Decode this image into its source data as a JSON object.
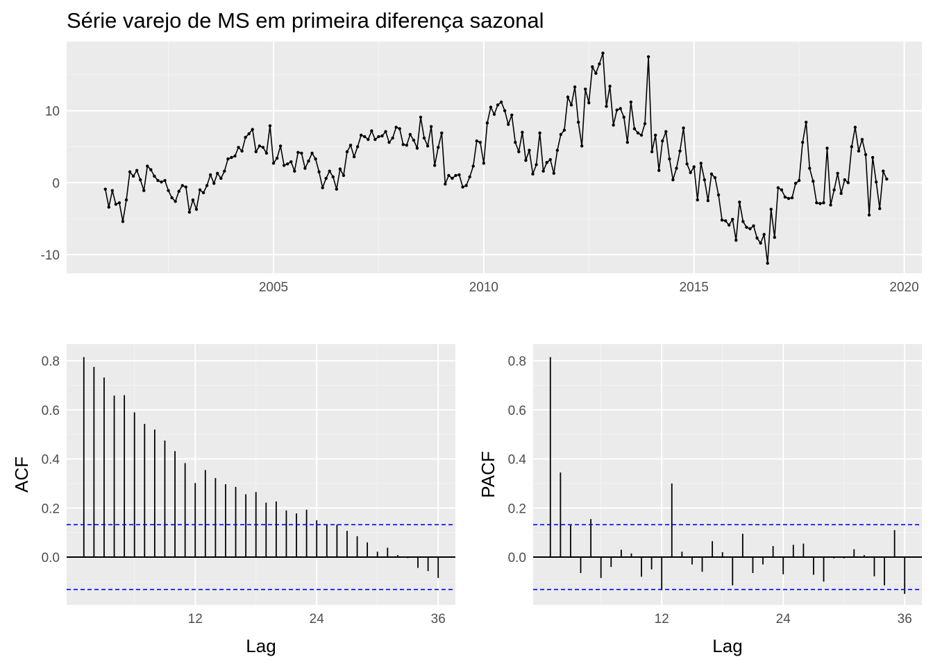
{
  "chart_data": [
    {
      "type": "line",
      "title": "Série varejo de MS em primeira diferença sazonal",
      "xlabel": "",
      "ylabel": "",
      "x_start": 2001.0,
      "x_step": 0.08333333,
      "xlim": [
        2000.08,
        2020.42
      ],
      "ylim": [
        -12.6,
        19.6
      ],
      "x_ticks": [
        2005,
        2010,
        2015,
        2020
      ],
      "y_ticks": [
        -10,
        0,
        10
      ],
      "grid": true,
      "markers": true,
      "series": [
        {
          "values": [
            -0.9,
            -3.4,
            -1.1,
            -3.0,
            -2.8,
            -5.4,
            -2.4,
            1.5,
            0.9,
            1.7,
            0.4,
            -1.1,
            2.3,
            1.8,
            0.9,
            0.3,
            0.1,
            0.3,
            -1.1,
            -2.1,
            -2.6,
            -1.2,
            -0.4,
            -0.6,
            -4.1,
            -2.4,
            -3.7,
            -1.0,
            -1.4,
            -0.4,
            1.1,
            -0.1,
            1.3,
            0.6,
            1.6,
            3.3,
            3.5,
            3.7,
            4.9,
            4.4,
            6.3,
            6.8,
            7.4,
            4.3,
            5.1,
            4.9,
            4.1,
            7.9,
            2.7,
            3.4,
            5.1,
            2.4,
            2.6,
            2.9,
            1.6,
            4.2,
            4.1,
            2.0,
            3.0,
            4.1,
            3.3,
            1.5,
            -0.7,
            0.6,
            1.6,
            0.8,
            -0.9,
            1.9,
            1.0,
            4.3,
            5.2,
            3.6,
            5.0,
            6.6,
            6.4,
            6.0,
            7.2,
            6.0,
            6.4,
            6.5,
            7.1,
            5.6,
            6.2,
            7.7,
            7.5,
            5.3,
            5.2,
            6.7,
            5.9,
            4.8,
            9.1,
            6.2,
            5.1,
            7.8,
            2.4,
            4.9,
            6.9,
            -0.2,
            1.0,
            0.6,
            1.0,
            1.1,
            -0.6,
            -0.4,
            0.8,
            2.3,
            5.8,
            5.6,
            2.7,
            8.3,
            10.5,
            9.5,
            10.8,
            11.2,
            10.0,
            8.1,
            9.4,
            5.6,
            4.3,
            7.0,
            3.1,
            4.5,
            1.2,
            2.5,
            6.9,
            1.6,
            2.8,
            3.2,
            1.3,
            4.5,
            6.7,
            7.3,
            11.9,
            10.8,
            13.3,
            8.4,
            5.1,
            13.0,
            11.1,
            16.1,
            15.2,
            16.5,
            18.0,
            10.6,
            13.4,
            8.0,
            10.1,
            10.3,
            9.1,
            5.6,
            11.2,
            7.5,
            6.9,
            6.6,
            8.2,
            17.5,
            4.3,
            6.6,
            1.7,
            5.8,
            7.1,
            3.3,
            0.4,
            2.0,
            4.4,
            7.6,
            2.6,
            1.4,
            2.2,
            -2.4,
            2.7,
            0.4,
            -2.5,
            1.2,
            0.7,
            -1.7,
            -5.2,
            -5.3,
            -5.9,
            -5.1,
            -8.0,
            -2.7,
            -5.4,
            -6.2,
            -6.4,
            -6.0,
            -7.7,
            -8.4,
            -7.2,
            -11.2,
            -3.7,
            -7.6,
            -0.7,
            -1.0,
            -2.0,
            -2.2,
            -2.1,
            -0.1,
            0.3,
            5.6,
            8.4,
            2.0,
            0.2,
            -2.8,
            -2.9,
            -2.8,
            4.8,
            -3.1,
            -1.0,
            1.3,
            -1.5,
            0.4,
            0.0,
            5.0,
            7.7,
            4.4,
            6.0,
            3.9,
            -4.5,
            3.5,
            0.1,
            -3.6,
            1.6,
            0.5
          ]
        }
      ]
    },
    {
      "type": "bar",
      "title": "",
      "xlabel": "Lag",
      "ylabel": "ACF",
      "xlim": [
        -0.7,
        37.7
      ],
      "ylim": [
        -0.195,
        0.868
      ],
      "x_ticks": [
        12,
        24,
        36
      ],
      "y_ticks": [
        0.0,
        0.2,
        0.4,
        0.6,
        0.8
      ],
      "conf_bound": 0.132,
      "lags": [
        1,
        2,
        3,
        4,
        5,
        6,
        7,
        8,
        9,
        10,
        11,
        12,
        13,
        14,
        15,
        16,
        17,
        18,
        19,
        20,
        21,
        22,
        23,
        24,
        25,
        26,
        27,
        28,
        29,
        30,
        31,
        32,
        33,
        34,
        35,
        36
      ],
      "values": [
        0.815,
        0.775,
        0.732,
        0.658,
        0.66,
        0.59,
        0.543,
        0.52,
        0.475,
        0.432,
        0.383,
        0.302,
        0.355,
        0.322,
        0.297,
        0.286,
        0.256,
        0.265,
        0.222,
        0.227,
        0.19,
        0.178,
        0.193,
        0.15,
        0.132,
        0.132,
        0.107,
        0.085,
        0.06,
        0.022,
        0.038,
        0.008,
        -0.004,
        -0.044,
        -0.057,
        -0.085
      ]
    },
    {
      "type": "bar",
      "title": "",
      "xlabel": "Lag",
      "ylabel": "PACF",
      "xlim": [
        -0.7,
        37.7
      ],
      "ylim": [
        -0.195,
        0.868
      ],
      "x_ticks": [
        12,
        24,
        36
      ],
      "y_ticks": [
        0.0,
        0.2,
        0.4,
        0.6,
        0.8
      ],
      "conf_bound": 0.132,
      "lags": [
        1,
        2,
        3,
        4,
        5,
        6,
        7,
        8,
        9,
        10,
        11,
        12,
        13,
        14,
        15,
        16,
        17,
        18,
        19,
        20,
        21,
        22,
        23,
        24,
        25,
        26,
        27,
        28,
        29,
        30,
        31,
        32,
        33,
        34,
        35,
        36
      ],
      "values": [
        0.815,
        0.345,
        0.13,
        -0.065,
        0.155,
        -0.085,
        -0.04,
        0.03,
        0.015,
        -0.08,
        -0.05,
        -0.135,
        0.3,
        0.022,
        -0.03,
        -0.06,
        0.065,
        0.02,
        -0.115,
        0.095,
        -0.065,
        -0.03,
        0.045,
        -0.07,
        0.05,
        0.055,
        -0.072,
        -0.1,
        -0.005,
        -0.005,
        0.032,
        0.008,
        -0.078,
        -0.115,
        0.11,
        -0.15
      ]
    }
  ],
  "colors": {
    "panel_background": "#ebebeb",
    "grid_major": "#ffffff",
    "grid_minor": "#f4f4f4",
    "series_line": "#000000",
    "confidence_line": "#0000ff",
    "tick_text": "#4d4d4d"
  }
}
